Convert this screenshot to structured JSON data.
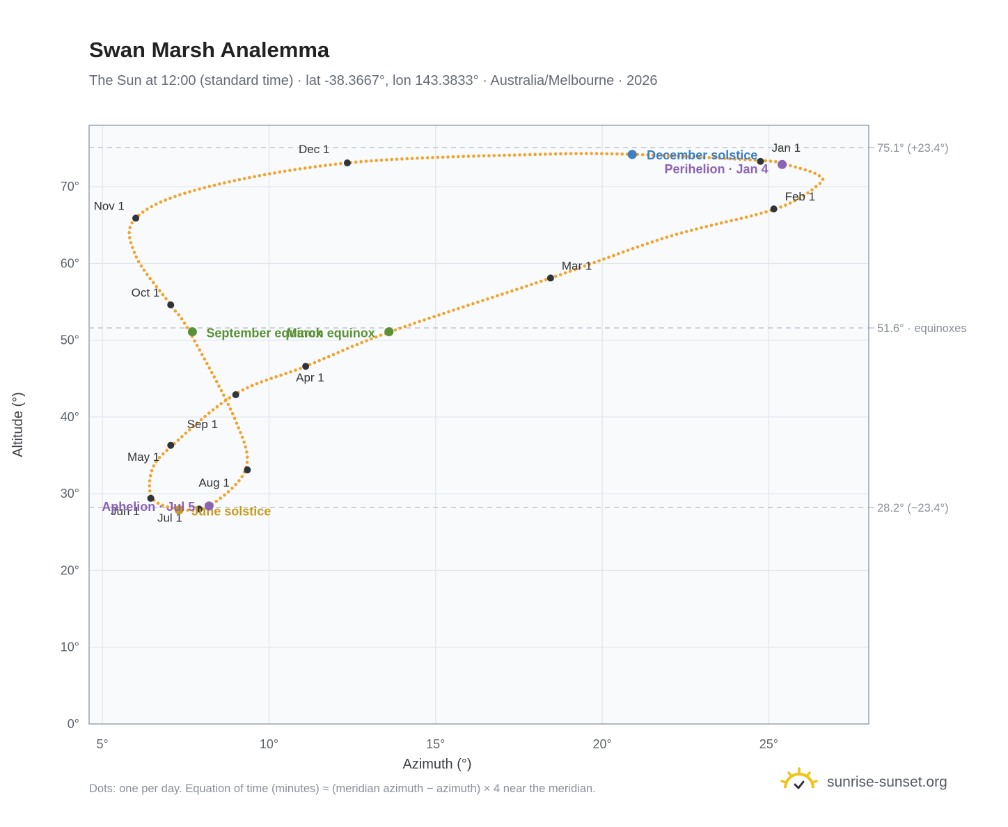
{
  "header": {
    "title": "Swan Marsh Analemma",
    "subtitle": "The Sun at 12:00 (standard time) · lat -38.3667°, lon 143.3833° · Australia/Melbourne · 2026"
  },
  "footer": {
    "note": "Dots: one per day. Equation of time (minutes) ≈ (meridian azimuth − azimuth) × 4 near the meridian.",
    "brand": "sunrise-sunset.org",
    "brand_icon": "sun-logo-icon"
  },
  "colors": {
    "curve": "#f2a32c",
    "month_point": "#2f343b",
    "solstice_december": "#3d7fc0",
    "solstice_june": "#c99a1d",
    "equinox": "#5a9136",
    "perihelion": "#8a63b3",
    "aphelion": "#8a63b3",
    "plot_bg": "#f8fafc",
    "grid": "#e3e7ec",
    "frame": "#9aa4b0",
    "ref_line": "#c3c9d0"
  },
  "chart_data": {
    "type": "scatter",
    "xlabel": "Azimuth (°)",
    "ylabel": "Altitude (°)",
    "xlim": [
      4.6,
      28
    ],
    "ylim": [
      0,
      78
    ],
    "x_ticks": [
      {
        "value": 5,
        "label": "5°"
      },
      {
        "value": 10,
        "label": "10°"
      },
      {
        "value": 15,
        "label": "15°"
      },
      {
        "value": 20,
        "label": "20°"
      },
      {
        "value": 25,
        "label": "25°"
      }
    ],
    "y_ticks": [
      {
        "value": 0,
        "label": "0°"
      },
      {
        "value": 10,
        "label": "10°"
      },
      {
        "value": 20,
        "label": "20°"
      },
      {
        "value": 30,
        "label": "30°"
      },
      {
        "value": 40,
        "label": "40°"
      },
      {
        "value": 50,
        "label": "50°"
      },
      {
        "value": 60,
        "label": "60°"
      },
      {
        "value": 70,
        "label": "70°"
      }
    ],
    "grid": true,
    "reference_lines": [
      {
        "y": 75.1,
        "label": "75.1° (+23.4°)"
      },
      {
        "y": 51.6,
        "label": "51.6° · equinoxes"
      },
      {
        "y": 28.2,
        "label": "28.2° (−23.4°)"
      }
    ],
    "curve_control_points": [
      [
        25.5,
        72.9
      ],
      [
        26.45,
        71.6
      ],
      [
        26.5,
        70.3
      ],
      [
        25.2,
        67.1
      ],
      [
        22.0,
        63.5
      ],
      [
        18.45,
        58.1
      ],
      [
        13.7,
        51.2
      ],
      [
        11.1,
        46.6
      ],
      [
        9.0,
        43.0
      ],
      [
        7.1,
        36.3
      ],
      [
        6.5,
        33.2
      ],
      [
        6.5,
        29.4
      ],
      [
        7.3,
        28.0
      ],
      [
        8.2,
        28.4
      ],
      [
        9.3,
        33.2
      ],
      [
        9.0,
        39.5
      ],
      [
        7.6,
        51.2
      ],
      [
        7.05,
        54.6
      ],
      [
        6.0,
        61.0
      ],
      [
        6.0,
        65.9
      ],
      [
        8.0,
        69.8
      ],
      [
        12.35,
        73.1
      ],
      [
        18.0,
        74.2
      ],
      [
        21.0,
        74.2
      ],
      [
        24.8,
        73.4
      ],
      [
        25.5,
        72.9
      ]
    ],
    "month_points": [
      {
        "label": "Jan 1",
        "x": 24.75,
        "y": 73.3
      },
      {
        "label": "Feb 1",
        "x": 25.15,
        "y": 67.1
      },
      {
        "label": "Mar 1",
        "x": 18.45,
        "y": 58.1
      },
      {
        "label": "Apr 1",
        "x": 11.1,
        "y": 46.6
      },
      {
        "label": "May 1",
        "x": 7.05,
        "y": 36.3
      },
      {
        "label": "Jun 1",
        "x": 6.45,
        "y": 29.4
      },
      {
        "label": "Jul 1",
        "x": 7.9,
        "y": 28.0
      },
      {
        "label": "Aug 1",
        "x": 9.35,
        "y": 33.1
      },
      {
        "label": "Sep 1",
        "x": 9.0,
        "y": 42.9
      },
      {
        "label": "Oct 1",
        "x": 7.05,
        "y": 54.6
      },
      {
        "label": "Nov 1",
        "x": 6.0,
        "y": 65.9
      },
      {
        "label": "Dec 1",
        "x": 12.35,
        "y": 73.1
      }
    ],
    "events": [
      {
        "label": "December solstice",
        "x": 20.9,
        "y": 74.2,
        "color_key": "solstice_december"
      },
      {
        "label": "Perihelion · Jan 4",
        "x": 25.4,
        "y": 72.9,
        "color_key": "perihelion"
      },
      {
        "label": "March equinox",
        "x": 13.6,
        "y": 51.1,
        "color_key": "equinox"
      },
      {
        "label": "September equinox",
        "x": 7.7,
        "y": 51.1,
        "color_key": "equinox"
      },
      {
        "label": "June solstice",
        "x": 7.3,
        "y": 27.9,
        "color_key": "solstice_june"
      },
      {
        "label": "Aphelion · Jul 5",
        "x": 8.2,
        "y": 28.4,
        "color_key": "aphelion"
      }
    ]
  }
}
